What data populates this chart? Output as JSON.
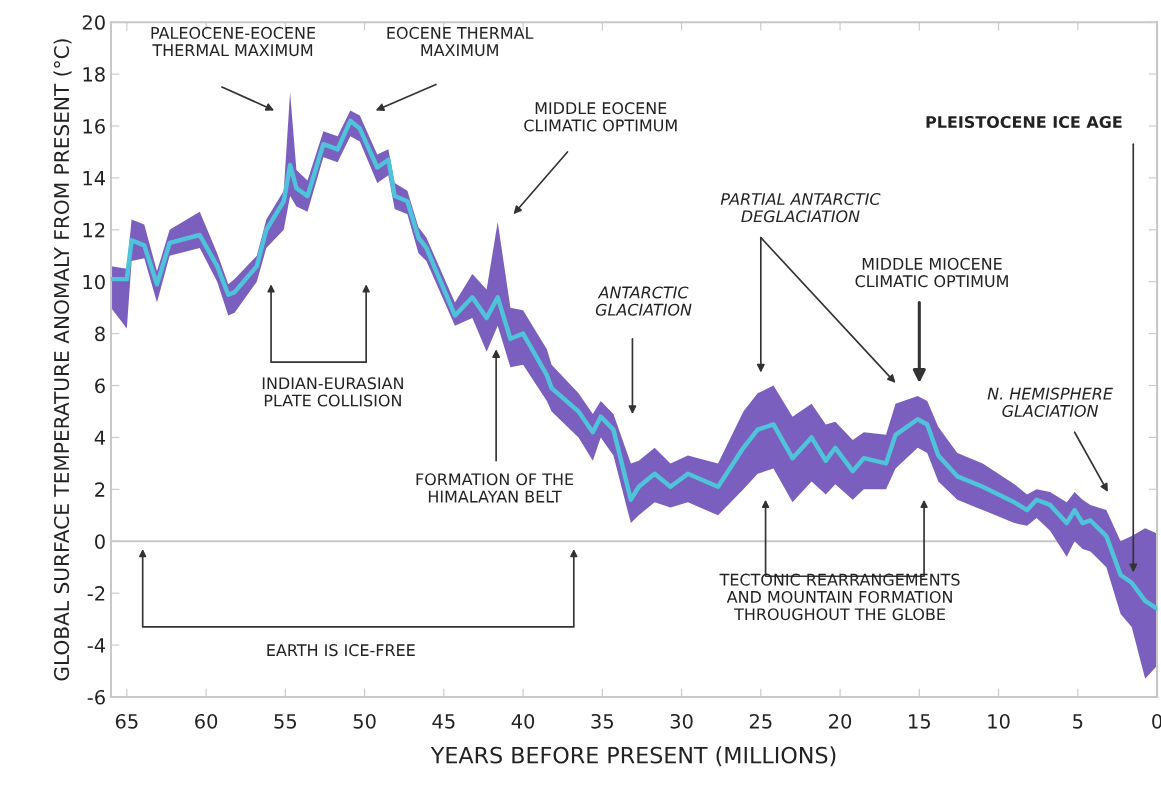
{
  "chart_data": {
    "type": "line",
    "xlabel": "YEARS BEFORE PRESENT (MILLIONS)",
    "ylabel": "GLOBAL SURFACE TEMPERATURE ANOMALY FROM PRESENT (°C)",
    "xlim": [
      66,
      0
    ],
    "xticks": [
      65,
      60,
      55,
      50,
      45,
      40,
      35,
      30,
      25,
      20,
      15,
      10,
      5,
      0
    ],
    "ylim": [
      -6,
      20
    ],
    "yticks": [
      -6,
      -4,
      -2,
      0,
      2,
      4,
      6,
      8,
      10,
      12,
      14,
      16,
      18,
      20
    ],
    "grid": false,
    "legend": false,
    "marker": "none",
    "line_style": "solid",
    "ref_lines": [
      {
        "axis": "y",
        "value": 0,
        "color": "#c8c8c8"
      }
    ],
    "x": [
      66.0,
      65.0,
      64.7,
      63.9,
      63.1,
      62.3,
      60.4,
      59.3,
      58.6,
      58.2,
      56.8,
      56.2,
      55.1,
      54.7,
      54.3,
      53.6,
      52.6,
      51.7,
      50.9,
      50.3,
      49.2,
      48.5,
      48.1,
      47.3,
      46.6,
      46.1,
      44.3,
      43.2,
      42.3,
      41.6,
      40.8,
      40.0,
      38.5,
      38.2,
      36.5,
      35.6,
      35.1,
      34.3,
      33.2,
      32.7,
      31.7,
      30.7,
      29.6,
      27.7,
      26.1,
      25.2,
      24.2,
      23.0,
      21.8,
      20.9,
      20.3,
      19.2,
      18.5,
      17.1,
      16.5,
      15.1,
      14.5,
      13.8,
      12.6,
      11.0,
      9.0,
      8.2,
      7.6,
      6.75,
      5.7,
      5.2,
      4.7,
      4.2,
      3.2,
      2.3,
      1.6,
      0.75,
      0.0
    ],
    "series": [
      {
        "color": "#4fc3d9",
        "values": [
          10.1,
          10.1,
          11.6,
          11.4,
          9.9,
          11.5,
          11.8,
          10.6,
          9.5,
          9.6,
          10.6,
          12.0,
          13.1,
          14.5,
          13.6,
          13.3,
          15.3,
          15.1,
          16.2,
          15.9,
          14.4,
          14.7,
          13.3,
          13.1,
          11.7,
          11.3,
          8.7,
          9.4,
          8.6,
          9.4,
          7.8,
          8.0,
          6.4,
          5.9,
          5.0,
          4.2,
          4.8,
          4.3,
          1.6,
          2.1,
          2.6,
          2.1,
          2.6,
          2.1,
          3.6,
          4.3,
          4.5,
          3.2,
          4.0,
          3.1,
          3.6,
          2.7,
          3.2,
          3.0,
          4.1,
          4.7,
          4.5,
          3.3,
          2.5,
          2.1,
          1.5,
          1.2,
          1.6,
          1.4,
          0.7,
          1.2,
          0.7,
          0.8,
          0.2,
          -1.3,
          -1.6,
          -2.3,
          -2.6
        ],
        "lower": [
          9.0,
          8.2,
          10.8,
          10.9,
          9.2,
          11.0,
          11.3,
          10.0,
          8.7,
          8.8,
          10.0,
          11.3,
          12.0,
          13.3,
          12.9,
          12.7,
          14.8,
          14.6,
          15.6,
          15.4,
          13.8,
          14.1,
          12.8,
          12.6,
          11.1,
          10.8,
          8.3,
          8.6,
          7.3,
          8.3,
          6.7,
          6.8,
          5.4,
          5.0,
          4.0,
          3.1,
          4.0,
          3.3,
          0.7,
          1.0,
          1.5,
          1.3,
          1.5,
          1.0,
          2.0,
          2.6,
          2.8,
          1.5,
          2.3,
          1.8,
          2.2,
          1.6,
          2.0,
          2.0,
          2.8,
          3.6,
          3.4,
          2.3,
          1.6,
          1.2,
          0.7,
          0.6,
          0.9,
          0.4,
          -0.6,
          0.0,
          -0.3,
          -0.4,
          -1.0,
          -2.8,
          -3.3,
          -5.3,
          -4.8
        ],
        "upper": [
          10.6,
          10.5,
          12.4,
          12.2,
          10.4,
          12.0,
          12.7,
          11.1,
          9.9,
          10.1,
          11.0,
          12.4,
          13.5,
          17.3,
          14.3,
          13.9,
          15.8,
          15.6,
          16.6,
          16.4,
          14.9,
          15.1,
          13.8,
          13.5,
          12.1,
          11.7,
          9.2,
          10.3,
          9.7,
          12.3,
          9.0,
          8.9,
          7.4,
          6.8,
          5.7,
          4.9,
          5.4,
          4.9,
          3.0,
          3.1,
          3.6,
          3.0,
          3.3,
          3.0,
          5.0,
          5.7,
          6.0,
          4.8,
          5.3,
          4.5,
          4.6,
          3.9,
          4.2,
          4.1,
          5.3,
          5.6,
          5.4,
          4.4,
          3.4,
          3.0,
          2.2,
          1.8,
          2.0,
          1.9,
          1.5,
          1.9,
          1.6,
          1.4,
          1.2,
          0.0,
          0.2,
          0.5,
          0.3
        ]
      }
    ],
    "annotations": [
      "PALEOCENE-EOCENE\nTHERMAL MAXIMUM",
      "EOCENE THERMAL\nMAXIMUM",
      "MIDDLE EOCENE\nCLIMATIC OPTIMUM",
      "INDIAN-EURASIAN\nPLATE COLLISION",
      "FORMATION OF THE\nHIMALAYAN BELT",
      "ANTARCTIC\nGLACIATION",
      "PARTIAL ANTARCTIC\nDEGLACIATION",
      "MIDDLE MIOCENE\nCLIMATIC OPTIMUM",
      "PLEISTOCENE ICE AGE",
      "N. HEMISPHERE\nGLACIATION",
      "TECTONIC REARRANGEMENTS\nAND MOUNTAIN FORMATION\nTHROUGHOUT THE GLOBE",
      "EARTH IS ICE-FREE"
    ]
  }
}
